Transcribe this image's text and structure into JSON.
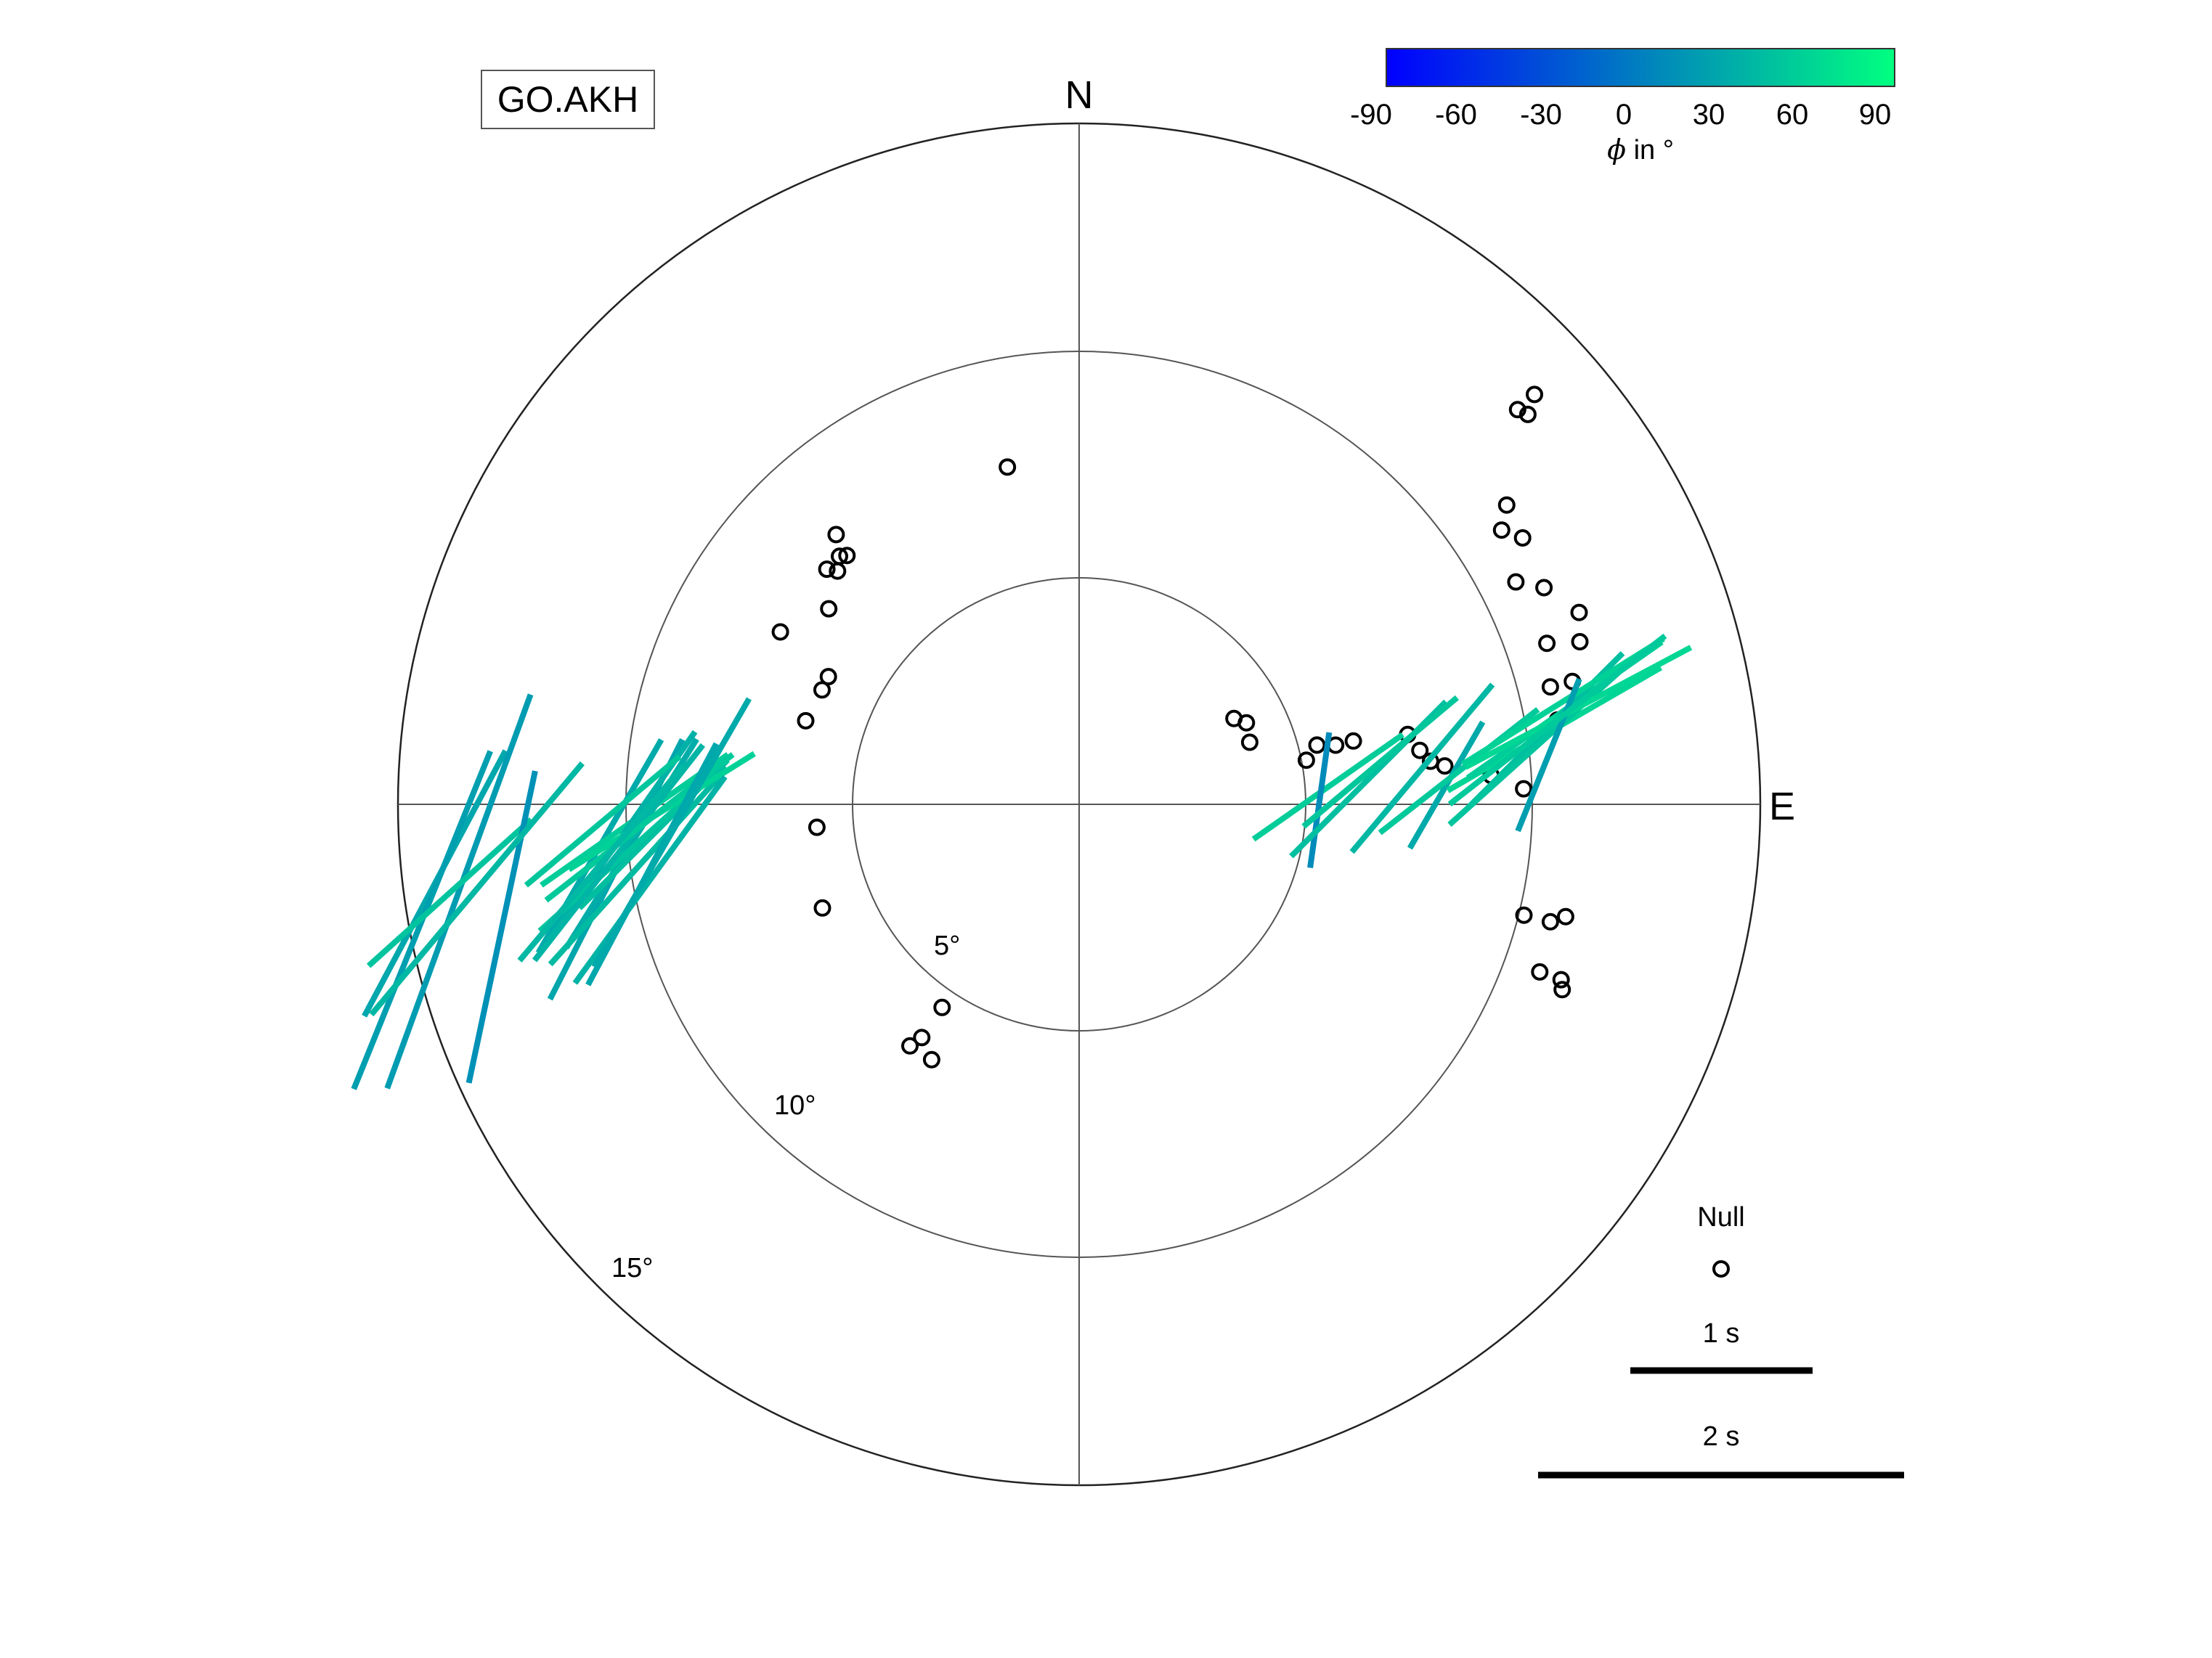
{
  "station": "GO.AKH",
  "directions": {
    "north": "N",
    "east": "E"
  },
  "colorbar": {
    "ticks": [
      "-90",
      "-60",
      "-30",
      "0",
      "30",
      "60",
      "90"
    ],
    "label_symbol": "ϕ",
    "label_text": " in °",
    "color_min": "#0000ff",
    "color_max": "#00ff80",
    "range": [
      -90,
      90
    ]
  },
  "legend": {
    "null_label": "Null",
    "scale_1_label": "1 s",
    "scale_2_label": "2 s"
  },
  "ring_labels": [
    "5°",
    "10°",
    "15°"
  ],
  "chart_data": {
    "type": "scatter",
    "projection": "polar",
    "rings_deg": [
      5,
      10,
      15
    ],
    "null_measurements": [
      {
        "baz": 348,
        "inc": 7.6
      },
      {
        "baz": 318,
        "inc": 8.0
      },
      {
        "baz": 317,
        "inc": 7.5
      },
      {
        "baz": 316,
        "inc": 7.6
      },
      {
        "baz": 314,
        "inc": 7.4
      },
      {
        "baz": 313,
        "inc": 7.6
      },
      {
        "baz": 308,
        "inc": 7.0
      },
      {
        "baz": 300,
        "inc": 7.6
      },
      {
        "baz": 294,
        "inc": 6.2
      },
      {
        "baz": 297,
        "inc": 6.2
      },
      {
        "baz": 287,
        "inc": 6.3
      },
      {
        "baz": 265,
        "inc": 5.8
      },
      {
        "baz": 248,
        "inc": 6.1
      },
      {
        "baz": 214,
        "inc": 5.4
      },
      {
        "baz": 214,
        "inc": 6.2
      },
      {
        "baz": 215,
        "inc": 6.5
      },
      {
        "baz": 210,
        "inc": 6.5
      },
      {
        "baz": 61,
        "inc": 3.9
      },
      {
        "baz": 64,
        "inc": 4.1
      },
      {
        "baz": 70,
        "inc": 4.0
      },
      {
        "baz": 79,
        "inc": 5.1
      },
      {
        "baz": 76,
        "inc": 5.4
      },
      {
        "baz": 77,
        "inc": 5.8
      },
      {
        "baz": 77,
        "inc": 6.2
      },
      {
        "baz": 78,
        "inc": 7.4
      },
      {
        "baz": 81,
        "inc": 7.6
      },
      {
        "baz": 84,
        "inc": 8.1
      },
      {
        "baz": 83,
        "inc": 7.8
      },
      {
        "baz": 86,
        "inc": 9.1
      },
      {
        "baz": 48,
        "inc": 13.0
      },
      {
        "baz": 49,
        "inc": 13.1
      },
      {
        "baz": 48,
        "inc": 13.5
      },
      {
        "baz": 55,
        "inc": 11.5
      },
      {
        "baz": 57,
        "inc": 11.1
      },
      {
        "baz": 59,
        "inc": 11.4
      },
      {
        "baz": 63,
        "inc": 10.8
      },
      {
        "baz": 65,
        "inc": 11.3
      },
      {
        "baz": 69,
        "inc": 11.8
      },
      {
        "baz": 71,
        "inc": 10.9
      },
      {
        "baz": 72,
        "inc": 11.6
      },
      {
        "baz": 76,
        "inc": 10.7
      },
      {
        "baz": 76,
        "inc": 11.2
      },
      {
        "baz": 80,
        "inc": 10.7
      },
      {
        "baz": 88,
        "inc": 9.8
      },
      {
        "baz": 110,
        "inc": 10.8
      },
      {
        "baz": 110,
        "inc": 11.3
      },
      {
        "baz": 111,
        "inc": 11.4
      },
      {
        "baz": 104,
        "inc": 10.1
      },
      {
        "baz": 104,
        "inc": 10.7
      },
      {
        "baz": 103,
        "inc": 11.0
      }
    ],
    "split_measurements": [
      {
        "baz": 263,
        "inc": 14.3,
        "phi": 28,
        "dt": 1.65
      },
      {
        "baz": 262,
        "inc": 13.8,
        "phi": 20,
        "dt": 2.3
      },
      {
        "baz": 260,
        "inc": 14.7,
        "phi": 22,
        "dt": 2.0
      },
      {
        "baz": 262,
        "inc": 14.0,
        "phi": 48,
        "dt": 1.2
      },
      {
        "baz": 258,
        "inc": 13.0,
        "phi": 12,
        "dt": 1.75
      },
      {
        "baz": 262,
        "inc": 13.4,
        "phi": 40,
        "dt": 1.8
      },
      {
        "baz": 262,
        "inc": 10.3,
        "phi": 27,
        "dt": 1.6
      },
      {
        "baz": 265,
        "inc": 10.6,
        "phi": 30,
        "dt": 1.35
      },
      {
        "baz": 265,
        "inc": 9.9,
        "phi": 32,
        "dt": 1.35
      },
      {
        "baz": 266,
        "inc": 9.4,
        "phi": 45,
        "dt": 1.15
      },
      {
        "baz": 268,
        "inc": 9.8,
        "phi": 55,
        "dt": 1.25
      },
      {
        "baz": 266,
        "inc": 10.1,
        "phi": 35,
        "dt": 1.4
      },
      {
        "baz": 268,
        "inc": 10.5,
        "phi": 50,
        "dt": 1.1
      },
      {
        "baz": 262,
        "inc": 9.8,
        "phi": 42,
        "dt": 1.45
      },
      {
        "baz": 264,
        "inc": 10.0,
        "phi": 48,
        "dt": 1.3
      },
      {
        "baz": 269,
        "inc": 9.2,
        "phi": 58,
        "dt": 1.2
      },
      {
        "baz": 264,
        "inc": 10.2,
        "phi": 38,
        "dt": 1.5
      },
      {
        "baz": 267,
        "inc": 9.7,
        "phi": 52,
        "dt": 1.3
      },
      {
        "baz": 262,
        "inc": 9.5,
        "phi": 28,
        "dt": 1.5
      },
      {
        "baz": 263,
        "inc": 10.6,
        "phi": 40,
        "dt": 1.4
      },
      {
        "baz": 260,
        "inc": 9.6,
        "phi": 36,
        "dt": 1.4
      },
      {
        "baz": 266,
        "inc": 9.0,
        "phi": 30,
        "dt": 1.7
      },
      {
        "baz": 86,
        "inc": 5.5,
        "phi": 55,
        "dt": 1.0
      },
      {
        "baz": 89,
        "inc": 5.3,
        "phi": 8,
        "dt": 0.75
      },
      {
        "baz": 85,
        "inc": 6.4,
        "phi": 45,
        "dt": 1.2
      },
      {
        "baz": 82,
        "inc": 6.7,
        "phi": 50,
        "dt": 1.1
      },
      {
        "baz": 84,
        "inc": 7.6,
        "phi": 40,
        "dt": 1.2
      },
      {
        "baz": 87,
        "inc": 8.1,
        "phi": 30,
        "dt": 0.8
      },
      {
        "baz": 85,
        "inc": 8.4,
        "phi": 52,
        "dt": 1.1
      },
      {
        "baz": 81,
        "inc": 10.6,
        "phi": 60,
        "dt": 1.35
      },
      {
        "baz": 79,
        "inc": 10.9,
        "phi": 55,
        "dt": 1.3
      },
      {
        "baz": 81,
        "inc": 10.4,
        "phi": 45,
        "dt": 1.2
      },
      {
        "baz": 83,
        "inc": 10.1,
        "phi": 48,
        "dt": 1.25
      },
      {
        "baz": 79,
        "inc": 11.2,
        "phi": 62,
        "dt": 1.4
      },
      {
        "baz": 78,
        "inc": 10.9,
        "phi": 58,
        "dt": 1.3
      },
      {
        "baz": 84,
        "inc": 10.4,
        "phi": 22,
        "dt": 0.9
      },
      {
        "baz": 80,
        "inc": 10.7,
        "phi": 52,
        "dt": 1.5
      }
    ],
    "scale_bars": [
      {
        "label": "1 s",
        "value": 1
      },
      {
        "label": "2 s",
        "value": 2
      }
    ]
  }
}
